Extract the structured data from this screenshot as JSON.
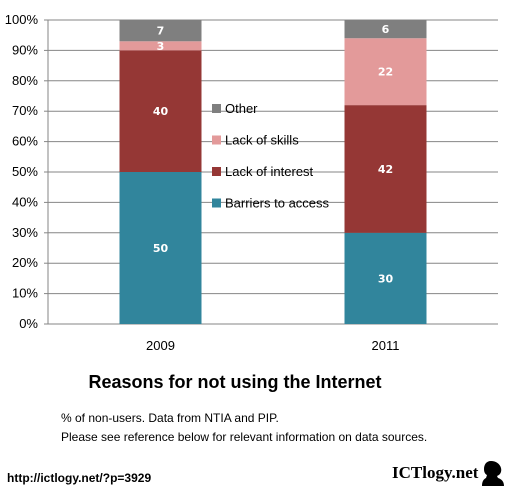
{
  "chart_data": {
    "type": "bar",
    "stacked": true,
    "categories": [
      "2009",
      "2011"
    ],
    "series": [
      {
        "name": "Barriers to access",
        "values": [
          50,
          30
        ],
        "color": "#31859c"
      },
      {
        "name": "Lack of interest",
        "values": [
          40,
          42
        ],
        "color": "#953735"
      },
      {
        "name": "Lack of skills",
        "values": [
          3,
          22
        ],
        "color": "#e39a9a"
      },
      {
        "name": "Other",
        "values": [
          7,
          6
        ],
        "color": "#7f7f7f"
      }
    ],
    "y_ticks": [
      "0%",
      "10%",
      "20%",
      "30%",
      "40%",
      "50%",
      "60%",
      "70%",
      "80%",
      "90%",
      "100%"
    ],
    "ylim": [
      0,
      100
    ],
    "grid": true,
    "legend_position": "center",
    "title": "Reasons for not using the Internet",
    "xlabel": "",
    "ylabel": ""
  },
  "notes": {
    "line1": "% of non-users. Data from NTIA and PIP.",
    "line2": "Please see reference below for relevant information on data sources."
  },
  "footer": {
    "url": "http://ictlogy.net/?p=3929",
    "logo_text": "ICTlogy.net"
  }
}
